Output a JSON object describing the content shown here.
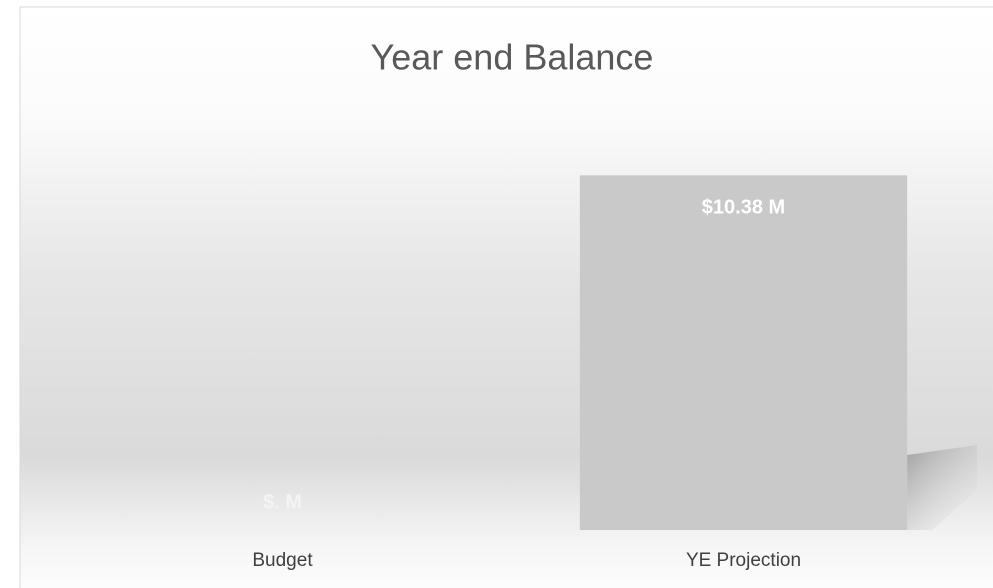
{
  "chart_data": {
    "type": "bar",
    "title": "Year end Balance",
    "categories": [
      "Budget",
      "YE Projection"
    ],
    "values": [
      0,
      10.38
    ],
    "value_labels": [
      "$. M",
      "$10.38 M"
    ],
    "color": "#c9c9c9",
    "ylim": [
      0,
      12
    ]
  }
}
